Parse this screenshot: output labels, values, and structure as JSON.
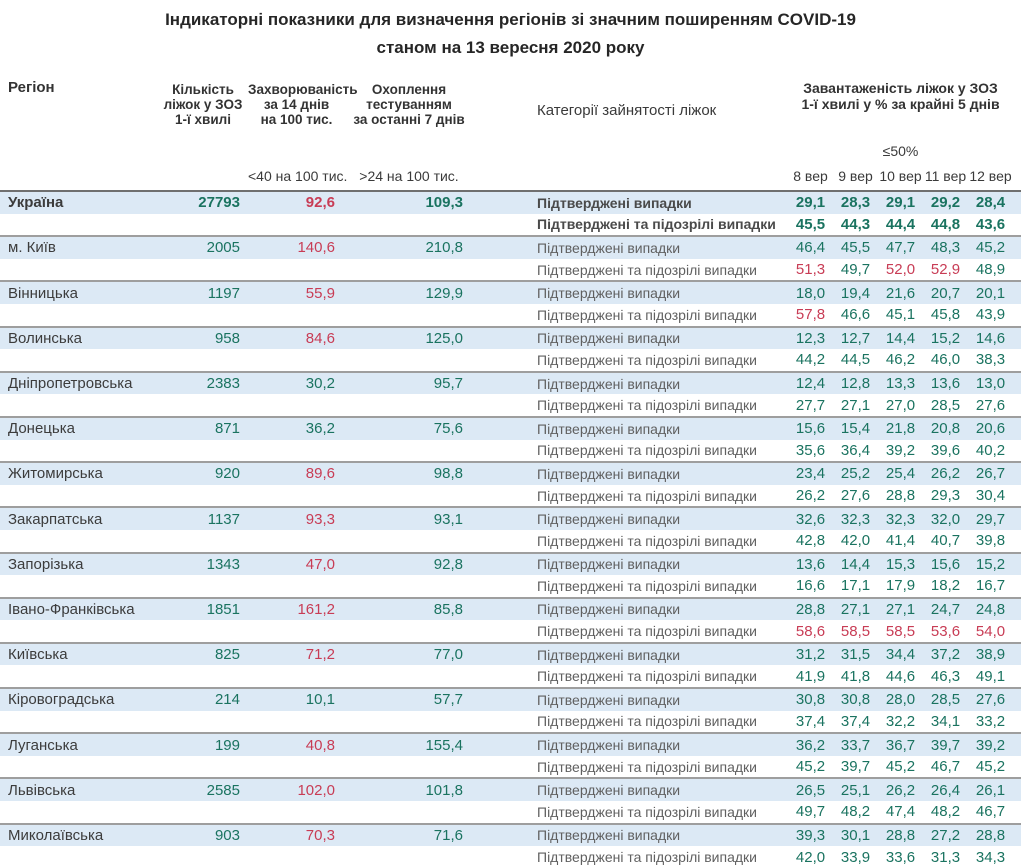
{
  "title": {
    "line1": "Індикаторні показники для визначення регіонів зі значним поширенням COVID-19",
    "line2": "станом на 13 вересня 2020 року"
  },
  "colors": {
    "green": "#1a7360",
    "red": "#c83c55",
    "row_highlight": "#dce9f5"
  },
  "table": {
    "columns": {
      "region": "Регіон",
      "beds": "Кількість\nліжок у ЗОЗ\n1-ї хвилі",
      "incidence": "Захворюваність\nза 14 днів\nна 100 тис.",
      "testing": "Охоплення\nтестуванням\nза останні 7 днів",
      "category": "Категорії зайнятості ліжок",
      "occupancy": "Завантаженість ліжок у ЗОЗ\n1-ї хвилі у % за крайні 5 днів"
    },
    "thresholds": {
      "incidence": "<40 на 100 тис.",
      "testing": ">24 на 100 тис.",
      "occupancy": "≤50%"
    },
    "day_labels": [
      "8 вер",
      "9 вер",
      "10 вер",
      "11 вер",
      "12 вер"
    ],
    "category_labels": {
      "confirmed": "Підтверджені випадки",
      "confirmed_suspected": "Підтверджені та підозрілі випадки"
    },
    "rows": [
      {
        "region": "Україна",
        "bold": true,
        "beds": "27793",
        "incidence": "92,6",
        "testing": "109,3",
        "confirmed": [
          "29,1",
          "28,3",
          "29,1",
          "29,2",
          "28,4"
        ],
        "confirmed_suspected": [
          "45,5",
          "44,3",
          "44,4",
          "44,8",
          "43,6"
        ]
      },
      {
        "region": "м. Київ",
        "bold": false,
        "beds": "2005",
        "incidence": "140,6",
        "testing": "210,8",
        "confirmed": [
          "46,4",
          "45,5",
          "47,7",
          "48,3",
          "45,2"
        ],
        "confirmed_suspected": [
          "51,3",
          "49,7",
          "52,0",
          "52,9",
          "48,9"
        ]
      },
      {
        "region": "Вінницька",
        "bold": false,
        "beds": "1197",
        "incidence": "55,9",
        "testing": "129,9",
        "confirmed": [
          "18,0",
          "19,4",
          "21,6",
          "20,7",
          "20,1"
        ],
        "confirmed_suspected": [
          "57,8",
          "46,6",
          "45,1",
          "45,8",
          "43,9"
        ]
      },
      {
        "region": "Волинська",
        "bold": false,
        "beds": "958",
        "incidence": "84,6",
        "testing": "125,0",
        "confirmed": [
          "12,3",
          "12,7",
          "14,4",
          "15,2",
          "14,6"
        ],
        "confirmed_suspected": [
          "44,2",
          "44,5",
          "46,2",
          "46,0",
          "38,3"
        ]
      },
      {
        "region": "Дніпропетровська",
        "bold": false,
        "beds": "2383",
        "incidence": "30,2",
        "testing": "95,7",
        "confirmed": [
          "12,4",
          "12,8",
          "13,3",
          "13,6",
          "13,0"
        ],
        "confirmed_suspected": [
          "27,7",
          "27,1",
          "27,0",
          "28,5",
          "27,6"
        ]
      },
      {
        "region": "Донецька",
        "bold": false,
        "beds": "871",
        "incidence": "36,2",
        "testing": "75,6",
        "confirmed": [
          "15,6",
          "15,4",
          "21,8",
          "20,8",
          "20,6"
        ],
        "confirmed_suspected": [
          "35,6",
          "36,4",
          "39,2",
          "39,6",
          "40,2"
        ]
      },
      {
        "region": "Житомирська",
        "bold": false,
        "beds": "920",
        "incidence": "89,6",
        "testing": "98,8",
        "confirmed": [
          "23,4",
          "25,2",
          "25,4",
          "26,2",
          "26,7"
        ],
        "confirmed_suspected": [
          "26,2",
          "27,6",
          "28,8",
          "29,3",
          "30,4"
        ]
      },
      {
        "region": "Закарпатська",
        "bold": false,
        "beds": "1137",
        "incidence": "93,3",
        "testing": "93,1",
        "confirmed": [
          "32,6",
          "32,3",
          "32,3",
          "32,0",
          "29,7"
        ],
        "confirmed_suspected": [
          "42,8",
          "42,0",
          "41,4",
          "40,7",
          "39,8"
        ]
      },
      {
        "region": "Запорізька",
        "bold": false,
        "beds": "1343",
        "incidence": "47,0",
        "testing": "92,8",
        "confirmed": [
          "13,6",
          "14,4",
          "15,3",
          "15,6",
          "15,2"
        ],
        "confirmed_suspected": [
          "16,6",
          "17,1",
          "17,9",
          "18,2",
          "16,7"
        ]
      },
      {
        "region": "Івано-Франківська",
        "bold": false,
        "beds": "1851",
        "incidence": "161,2",
        "testing": "85,8",
        "confirmed": [
          "28,8",
          "27,1",
          "27,1",
          "24,7",
          "24,8"
        ],
        "confirmed_suspected": [
          "58,6",
          "58,5",
          "58,5",
          "53,6",
          "54,0"
        ]
      },
      {
        "region": "Київська",
        "bold": false,
        "beds": "825",
        "incidence": "71,2",
        "testing": "77,0",
        "confirmed": [
          "31,2",
          "31,5",
          "34,4",
          "37,2",
          "38,9"
        ],
        "confirmed_suspected": [
          "41,9",
          "41,8",
          "44,6",
          "46,3",
          "49,1"
        ]
      },
      {
        "region": "Кіровоградська",
        "bold": false,
        "beds": "214",
        "incidence": "10,1",
        "testing": "57,7",
        "confirmed": [
          "30,8",
          "30,8",
          "28,0",
          "28,5",
          "27,6"
        ],
        "confirmed_suspected": [
          "37,4",
          "37,4",
          "32,2",
          "34,1",
          "33,2"
        ]
      },
      {
        "region": "Луганська",
        "bold": false,
        "beds": "199",
        "incidence": "40,8",
        "testing": "155,4",
        "confirmed": [
          "36,2",
          "33,7",
          "36,7",
          "39,7",
          "39,2"
        ],
        "confirmed_suspected": [
          "45,2",
          "39,7",
          "45,2",
          "46,7",
          "45,2"
        ]
      },
      {
        "region": "Львівська",
        "bold": false,
        "beds": "2585",
        "incidence": "102,0",
        "testing": "101,8",
        "confirmed": [
          "26,5",
          "25,1",
          "26,2",
          "26,4",
          "26,1"
        ],
        "confirmed_suspected": [
          "49,7",
          "48,2",
          "47,4",
          "48,2",
          "46,7"
        ]
      },
      {
        "region": "Миколаївська",
        "bold": false,
        "beds": "903",
        "incidence": "70,3",
        "testing": "71,6",
        "confirmed": [
          "39,3",
          "30,1",
          "28,8",
          "27,2",
          "28,8"
        ],
        "confirmed_suspected": [
          "42,0",
          "33,9",
          "33,6",
          "31,3",
          "34,3"
        ]
      }
    ]
  }
}
